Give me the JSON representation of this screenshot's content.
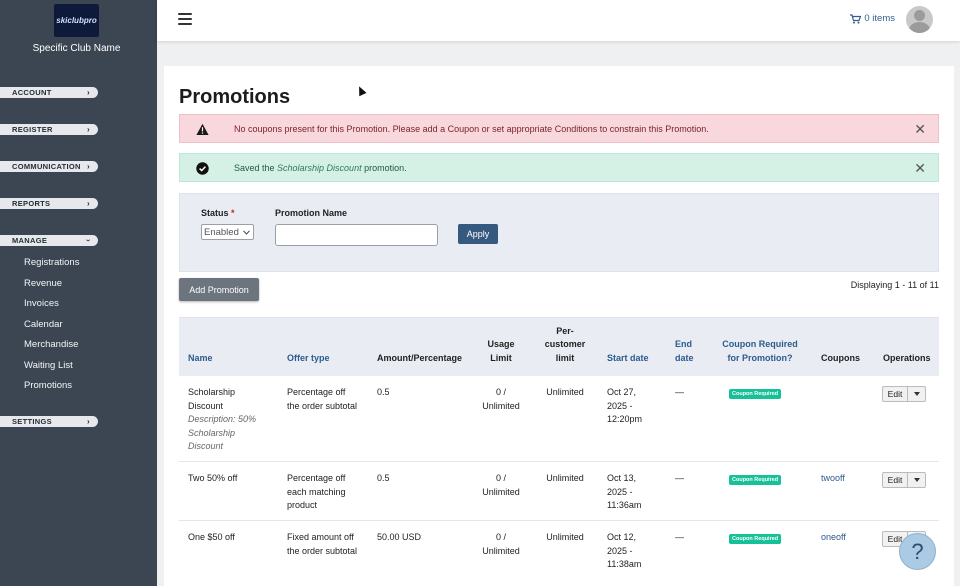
{
  "sidebar": {
    "logo_text": "skiclubpro",
    "club_name": "Specific Club Name",
    "sections": [
      {
        "label": "ACCOUNT",
        "expanded": false
      },
      {
        "label": "REGISTER",
        "expanded": false
      },
      {
        "label": "COMMUNICATION",
        "expanded": false
      },
      {
        "label": "REPORTS",
        "expanded": false
      },
      {
        "label": "MANAGE",
        "expanded": true
      },
      {
        "label": "SETTINGS",
        "expanded": false
      }
    ],
    "manage_items": [
      "Registrations",
      "Revenue",
      "Invoices",
      "Calendar",
      "Merchandise",
      "Waiting List",
      "Promotions"
    ]
  },
  "topbar": {
    "cart_label": "0 items"
  },
  "page": {
    "title": "Promotions"
  },
  "alerts": {
    "warning_text": "No coupons present for this Promotion. Please add a Coupon or set appropriate Conditions to constrain this Promotion.",
    "success_prefix": "Saved the ",
    "success_name": "Scholarship Discount",
    "success_suffix": " promotion."
  },
  "filter": {
    "status_label": "Status",
    "status_required_mark": "*",
    "status_value": "Enabled",
    "name_label": "Promotion Name",
    "name_value": "",
    "apply_label": "Apply"
  },
  "actions": {
    "add_label": "Add Promotion",
    "displaying": "Displaying 1 - 11 of 11"
  },
  "table": {
    "headers": {
      "name": "Name",
      "offer_type": "Offer type",
      "amount": "Amount/Percentage",
      "usage_limit_1": "Usage",
      "usage_limit_2": "Limit",
      "per_customer_1": "Per-",
      "per_customer_2": "customer",
      "per_customer_3": "limit",
      "start_date": "Start date",
      "end_date_1": "End",
      "end_date_2": "date",
      "coupon_required_1": "Coupon Required",
      "coupon_required_2": "for Promotion?",
      "coupons": "Coupons",
      "operations": "Operations"
    },
    "rows": [
      {
        "name_1": "Scholarship",
        "name_2": "Discount",
        "desc_1": "Description: 50%",
        "desc_2": "Scholarship",
        "desc_3": "Discount",
        "offer_1": "Percentage off",
        "offer_2": "the order subtotal",
        "amount": "0.5",
        "usage_1": "0 /",
        "usage_2": "Unlimited",
        "per_customer": "Unlimited",
        "start_1": "Oct 27,",
        "start_2": "2025 -",
        "start_3": "12:20pm",
        "end": "—",
        "badge": "Coupon Required",
        "coupon": "",
        "edit": "Edit"
      },
      {
        "name_1": "Two 50% off",
        "offer_1": "Percentage off",
        "offer_2": "each matching",
        "offer_3": "product",
        "amount": "0.5",
        "usage_1": "0 /",
        "usage_2": "Unlimited",
        "per_customer": "Unlimited",
        "start_1": "Oct 13,",
        "start_2": "2025 -",
        "start_3": "11:36am",
        "end": "—",
        "badge": "Coupon Required",
        "coupon": "twooff",
        "edit": "Edit"
      },
      {
        "name_1": "One $50 off",
        "offer_1": "Fixed amount off",
        "offer_2": "the order subtotal",
        "amount": "50.00 USD",
        "usage_1": "0 /",
        "usage_2": "Unlimited",
        "per_customer": "Unlimited",
        "start_1": "Oct 12,",
        "start_2": "2025 -",
        "start_3": "11:38am",
        "end": "—",
        "badge": "Coupon Required",
        "coupon": "oneoff",
        "edit": "Edit"
      }
    ]
  },
  "help": {
    "label": "?"
  },
  "colors": {
    "sidebar_bg": "#3b4652",
    "link": "#2c5b8d",
    "primary_button": "#36597f",
    "badge_green": "#16c197",
    "alert_danger_bg": "#f8d8dc",
    "alert_success_bg": "#d5f1e6"
  }
}
